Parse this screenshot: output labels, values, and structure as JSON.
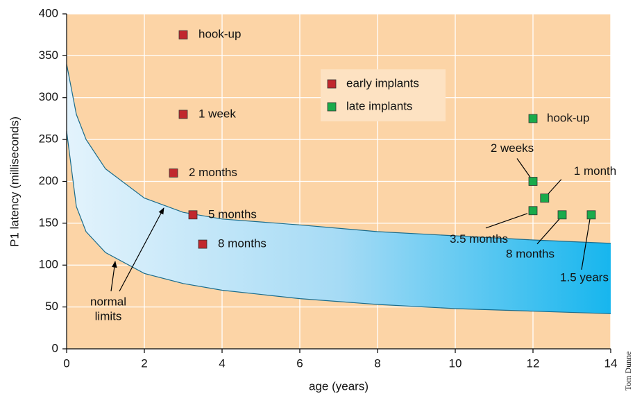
{
  "chart_data": {
    "type": "scatter",
    "xlabel": "age (years)",
    "ylabel": "P1 latency (milliseconds)",
    "xlim": [
      0,
      14
    ],
    "ylim": [
      0,
      400
    ],
    "xticks": [
      0,
      2,
      4,
      6,
      8,
      10,
      12,
      14
    ],
    "yticks": [
      0,
      50,
      100,
      150,
      200,
      250,
      300,
      350,
      400
    ],
    "grid": true,
    "series": [
      {
        "name": "early implants",
        "color": "#c1272d",
        "x": [
          3,
          3,
          2.75,
          3.25,
          3.5
        ],
        "values": [
          375,
          280,
          210,
          160,
          125
        ],
        "labels": [
          "hook-up",
          "1 week",
          "2 months",
          "5 months",
          "8 months"
        ]
      },
      {
        "name": "late implants",
        "color": "#1aab4b",
        "x": [
          12,
          12,
          12.3,
          12,
          12.75,
          13.5
        ],
        "values": [
          275,
          200,
          180,
          165,
          160,
          160
        ],
        "labels": [
          "hook-up",
          "2 weeks",
          "1 month",
          "3.5 months",
          "8 months",
          "1.5 years"
        ]
      }
    ],
    "band": {
      "label": [
        "normal",
        "limits"
      ],
      "x": [
        0,
        0.25,
        0.5,
        1,
        2,
        3,
        4,
        6,
        8,
        10,
        12,
        14
      ],
      "upper": [
        340,
        280,
        250,
        215,
        180,
        163,
        155,
        148,
        140,
        135,
        130,
        126
      ],
      "lower": [
        260,
        170,
        140,
        115,
        90,
        78,
        70,
        60,
        53,
        48,
        45,
        42
      ]
    },
    "credit": "Tom Dunne"
  }
}
